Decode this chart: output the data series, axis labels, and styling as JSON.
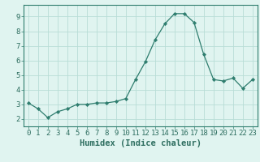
{
  "x": [
    0,
    1,
    2,
    3,
    4,
    5,
    6,
    7,
    8,
    9,
    10,
    11,
    12,
    13,
    14,
    15,
    16,
    17,
    18,
    19,
    20,
    21,
    22,
    23
  ],
  "y": [
    3.1,
    2.7,
    2.1,
    2.5,
    2.7,
    3.0,
    3.0,
    3.1,
    3.1,
    3.2,
    3.4,
    4.7,
    5.9,
    7.4,
    8.5,
    9.2,
    9.2,
    8.6,
    6.4,
    4.7,
    4.6,
    4.8,
    4.1,
    4.7
  ],
  "line_color": "#2e7d6e",
  "marker": "D",
  "marker_size": 2.2,
  "bg_color": "#e0f4f0",
  "grid_color": "#b8ddd6",
  "xlabel": "Humidex (Indice chaleur)",
  "ylim": [
    1.5,
    9.8
  ],
  "xlim": [
    -0.5,
    23.5
  ],
  "yticks": [
    2,
    3,
    4,
    5,
    6,
    7,
    8,
    9
  ],
  "xticks": [
    0,
    1,
    2,
    3,
    4,
    5,
    6,
    7,
    8,
    9,
    10,
    11,
    12,
    13,
    14,
    15,
    16,
    17,
    18,
    19,
    20,
    21,
    22,
    23
  ],
  "tick_color": "#2e6e60",
  "label_fontsize": 7.5,
  "tick_fontsize": 6.5,
  "spine_color": "#2e7d6e",
  "linewidth": 0.9
}
